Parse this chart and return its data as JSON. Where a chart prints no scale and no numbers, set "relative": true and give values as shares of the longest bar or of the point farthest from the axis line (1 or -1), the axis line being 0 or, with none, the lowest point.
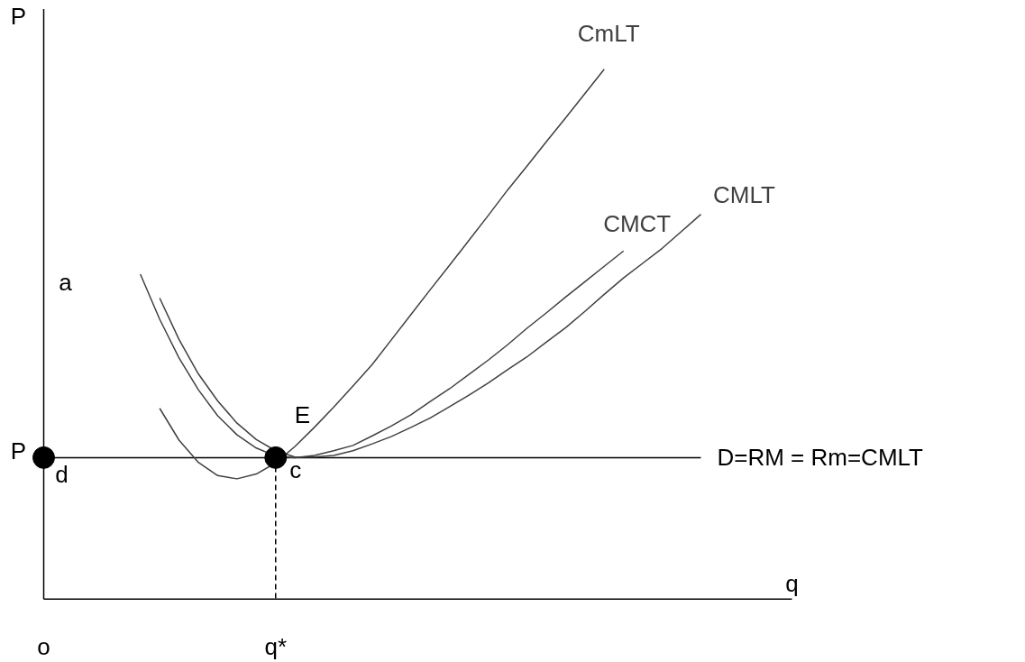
{
  "chart_data": {
    "type": "line",
    "relative": true,
    "xlabel": "q",
    "ylabel": "P",
    "categories": [
      "o",
      null,
      null,
      null,
      null,
      null,
      null,
      null,
      null,
      null,
      null,
      null,
      "q*",
      null,
      null,
      null,
      null,
      null,
      null,
      null,
      null,
      null,
      null,
      null,
      null,
      null,
      null,
      null,
      null,
      null,
      null,
      null,
      null,
      null,
      null
    ],
    "series": [
      {
        "name": "CmLT",
        "color": "#404040",
        "values": [
          null,
          null,
          null,
          null,
          null,
          null,
          0.36,
          0.3,
          0.258,
          0.233,
          0.227,
          0.236,
          0.257,
          0.288,
          0.324,
          0.362,
          0.402,
          0.443,
          0.49,
          0.537,
          0.584,
          0.63,
          0.677,
          0.724,
          0.772,
          0.817,
          0.863,
          0.908,
          0.954,
          1.0,
          null,
          null,
          null,
          null,
          null
        ]
      },
      {
        "name": "CMCT",
        "color": "#404040",
        "values": [
          null,
          null,
          null,
          null,
          null,
          0.613,
          0.528,
          0.455,
          0.395,
          0.346,
          0.31,
          0.285,
          0.27,
          0.267,
          0.271,
          0.28,
          0.29,
          0.308,
          0.327,
          0.348,
          0.373,
          0.397,
          0.424,
          0.451,
          0.48,
          0.511,
          0.54,
          0.57,
          0.599,
          0.628,
          0.657,
          null,
          null,
          null,
          null
        ]
      },
      {
        "name": "CMLT",
        "color": "#404040",
        "values": [
          null,
          null,
          null,
          null,
          null,
          null,
          0.568,
          0.49,
          0.425,
          0.374,
          0.332,
          0.301,
          0.28,
          0.268,
          0.268,
          0.271,
          0.28,
          0.293,
          0.307,
          0.324,
          0.342,
          0.363,
          0.385,
          0.408,
          0.433,
          0.457,
          0.485,
          0.512,
          0.543,
          0.575,
          0.606,
          0.634,
          0.662,
          0.694,
          0.726
        ]
      },
      {
        "type": "line",
        "line_style": "dashed",
        "color": "#000000",
        "x": [
          "q*",
          "q*"
        ],
        "values": [
          0.267,
          0
        ]
      },
      {
        "type": "scatter",
        "marker": "circle",
        "color": "#000000",
        "x": [
          "o",
          "q*"
        ],
        "values": [
          0.267,
          0.267
        ]
      }
    ],
    "ref_lines": [
      {
        "axis": "y",
        "value": 0.267,
        "label": "D=RM = Rm=CMLT",
        "color": "#000000"
      }
    ],
    "annotations": [
      "a",
      {
        "text": "P",
        "x": "o",
        "y": 0.279
      },
      "d",
      {
        "text": "c",
        "x": "q*",
        "y": 0.243
      },
      "E"
    ]
  }
}
